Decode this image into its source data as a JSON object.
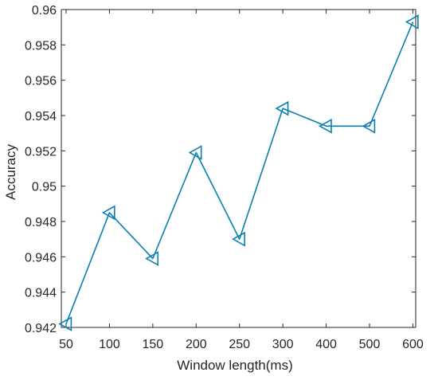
{
  "chart_data": {
    "type": "line",
    "title": "",
    "xlabel": "Window length(ms)",
    "ylabel": "Accuracy",
    "x_tick_labels": [
      "50",
      "100",
      "150",
      "200",
      "250",
      "300",
      "400",
      "500",
      "600"
    ],
    "y_ticks": [
      0.942,
      0.944,
      0.946,
      0.948,
      0.95,
      0.952,
      0.954,
      0.956,
      0.958,
      0.96
    ],
    "y_tick_labels": [
      "0.942",
      "0.944",
      "0.946",
      "0.948",
      "0.95",
      "0.952",
      "0.954",
      "0.956",
      "0.958",
      "0.96"
    ],
    "ylim": [
      0.942,
      0.96
    ],
    "x_scale": "categorical (equally spaced)",
    "grid": false,
    "legend": "none",
    "marker": "left-pointing triangle (open)",
    "line_color": "#0a7fb0",
    "series": [
      {
        "x": [
          "50",
          "100",
          "150",
          "200",
          "250",
          "300",
          "400",
          "500",
          "600"
        ],
        "values": [
          0.9422,
          0.9485,
          0.9459,
          0.9519,
          0.947,
          0.9544,
          0.9534,
          0.9534,
          0.9593
        ]
      }
    ]
  }
}
